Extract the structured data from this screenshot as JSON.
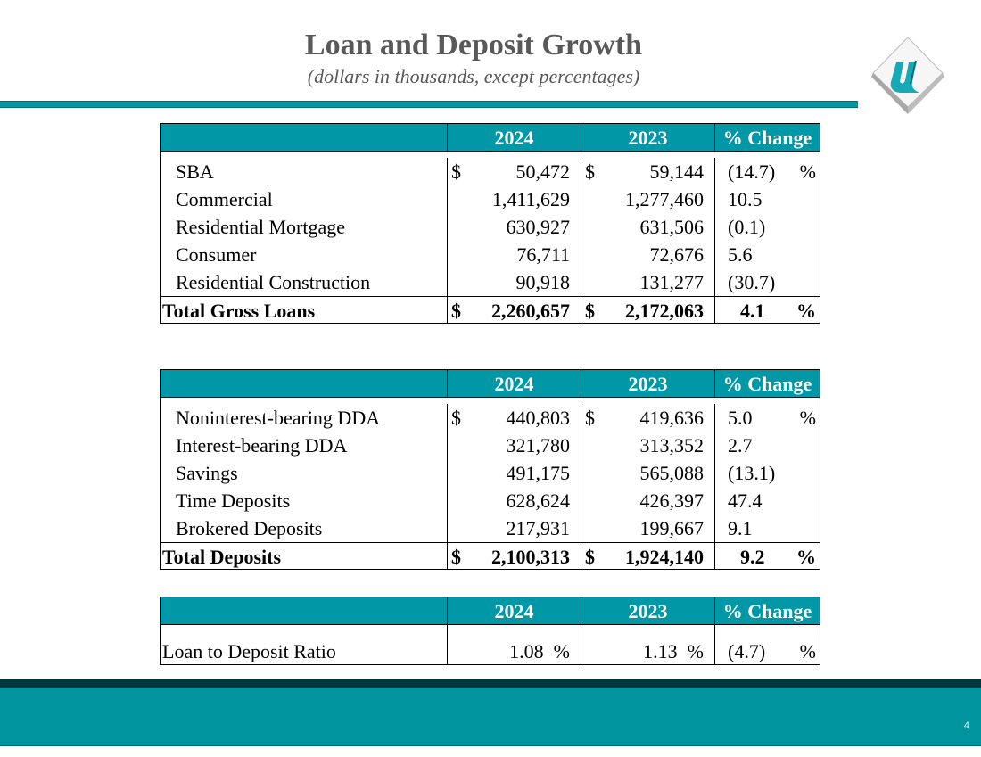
{
  "title": "Loan and Deposit Growth",
  "subtitle": "(dollars in thousands, except percentages)",
  "page_number": "4",
  "tables": [
    {
      "headers": [
        "2024",
        "2023",
        "% Change"
      ],
      "rows": [
        {
          "label": "SBA",
          "cur1": "$",
          "v2024": "50,472",
          "cur2": "$",
          "v2023": "59,144",
          "pct": "(14.7)",
          "pct_sign": "%"
        },
        {
          "label": "Commercial",
          "cur1": "",
          "v2024": "1,411,629",
          "cur2": "",
          "v2023": "1,277,460",
          "pct": "10.5",
          "pct_sign": ""
        },
        {
          "label": "Residential Mortgage",
          "cur1": "",
          "v2024": "630,927",
          "cur2": "",
          "v2023": "631,506",
          "pct": "(0.1)",
          "pct_sign": ""
        },
        {
          "label": "Consumer",
          "cur1": "",
          "v2024": "76,711",
          "cur2": "",
          "v2023": "72,676",
          "pct": "5.6",
          "pct_sign": ""
        },
        {
          "label": "Residential Construction",
          "cur1": "",
          "v2024": "90,918",
          "cur2": "",
          "v2023": "131,277",
          "pct": "(30.7)",
          "pct_sign": ""
        }
      ],
      "total": {
        "label": "Total Gross Loans",
        "cur1": "$",
        "v2024": "2,260,657",
        "cur2": "$",
        "v2023": "2,172,063",
        "pct": "4.1",
        "pct_sign": "%"
      }
    },
    {
      "headers": [
        "2024",
        "2023",
        "% Change"
      ],
      "rows": [
        {
          "label": "Noninterest-bearing DDA",
          "cur1": "$",
          "v2024": "440,803",
          "cur2": "$",
          "v2023": "419,636",
          "pct": "5.0",
          "pct_sign": "%"
        },
        {
          "label": "Interest-bearing DDA",
          "cur1": "",
          "v2024": "321,780",
          "cur2": "",
          "v2023": "313,352",
          "pct": "2.7",
          "pct_sign": ""
        },
        {
          "label": "Savings",
          "cur1": "",
          "v2024": "491,175",
          "cur2": "",
          "v2023": "565,088",
          "pct": "(13.1)",
          "pct_sign": ""
        },
        {
          "label": "Time Deposits",
          "cur1": "",
          "v2024": "628,624",
          "cur2": "",
          "v2023": "426,397",
          "pct": "47.4",
          "pct_sign": ""
        },
        {
          "label": "Brokered Deposits",
          "cur1": "",
          "v2024": "217,931",
          "cur2": "",
          "v2023": "199,667",
          "pct": "9.1",
          "pct_sign": ""
        }
      ],
      "total": {
        "label": "Total Deposits",
        "cur1": "$",
        "v2024": "2,100,313",
        "cur2": "$",
        "v2023": "1,924,140",
        "pct": "9.2",
        "pct_sign": "%"
      }
    },
    {
      "headers": [
        "2024",
        "2023",
        "% Change"
      ],
      "rows": [
        {
          "label": "Loan to Deposit Ratio",
          "cur1": "",
          "v2024": "1.08  %",
          "cur2": "",
          "v2023": "1.13  %",
          "pct": "(4.7)",
          "pct_sign": "%"
        }
      ],
      "total": null
    }
  ]
}
